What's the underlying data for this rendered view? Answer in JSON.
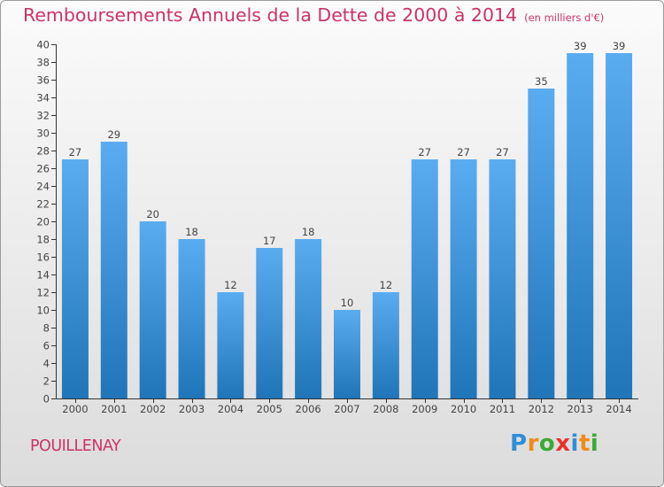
{
  "title": "Remboursements Annuels de la Dette de 2000 à 2014",
  "subtitle": "(en milliers d'€)",
  "place": "POUILLENAY",
  "logo": {
    "letters": [
      "P",
      "r",
      "o",
      "x",
      "i",
      "t",
      "i"
    ],
    "colors": [
      "#2f8fd8",
      "#f28a1a",
      "#3aaa35",
      "#e8332a",
      "#2f8fd8",
      "#f28a1a",
      "#3aaa35"
    ]
  },
  "chart_data": {
    "type": "bar",
    "title": "Remboursements Annuels de la Dette de 2000 à 2014",
    "subtitle": "(en milliers d'€)",
    "categories": [
      "2000",
      "2001",
      "2002",
      "2003",
      "2004",
      "2005",
      "2006",
      "2007",
      "2008",
      "2009",
      "2010",
      "2011",
      "2012",
      "2013",
      "2014"
    ],
    "values": [
      27,
      29,
      20,
      18,
      12,
      17,
      18,
      10,
      12,
      27,
      27,
      27,
      35,
      39,
      39
    ],
    "ylim": [
      0,
      40
    ],
    "ytick_step": 2,
    "grid": false,
    "legend": "none",
    "bar_color": "#5aacf0"
  }
}
